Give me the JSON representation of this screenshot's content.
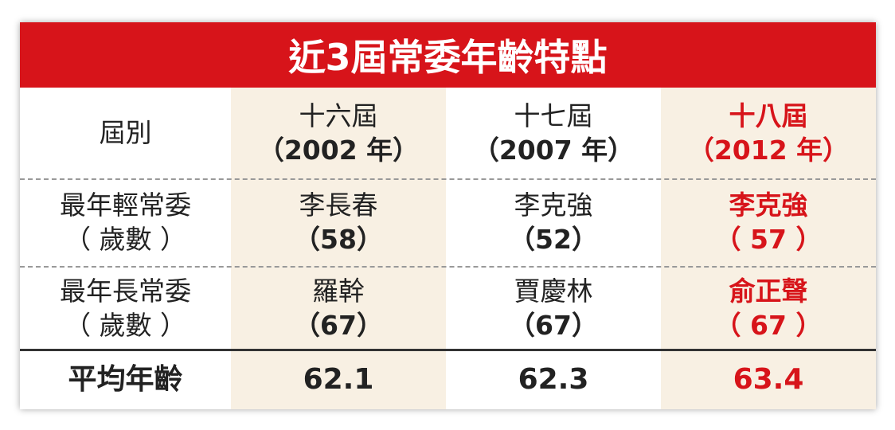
{
  "header": {
    "title": "近3屆常委年齡特點"
  },
  "table": {
    "rows": [
      [
        [
          "屆別"
        ],
        [
          "十六屆",
          "（2002 年）"
        ],
        [
          "十七屆",
          "（2007 年）"
        ],
        [
          "十八屆",
          "（2012 年）"
        ]
      ],
      [
        [
          "最年輕常委",
          "（ 歲數 ）"
        ],
        [
          "李長春",
          "（58）"
        ],
        [
          "李克強",
          "（52）"
        ],
        [
          "李克強",
          "（ 57 ）"
        ]
      ],
      [
        [
          "最年長常委",
          "（ 歲數 ）"
        ],
        [
          "羅幹",
          "（67）"
        ],
        [
          "賈慶林",
          "（67）"
        ],
        [
          "俞正聲",
          "（ 67 ）"
        ]
      ],
      [
        [
          "平均年齡"
        ],
        [
          62.1
        ],
        [
          62.3
        ],
        [
          63.4
        ]
      ]
    ]
  },
  "highlight": {
    "column": 3,
    "color": "#d7141a"
  }
}
